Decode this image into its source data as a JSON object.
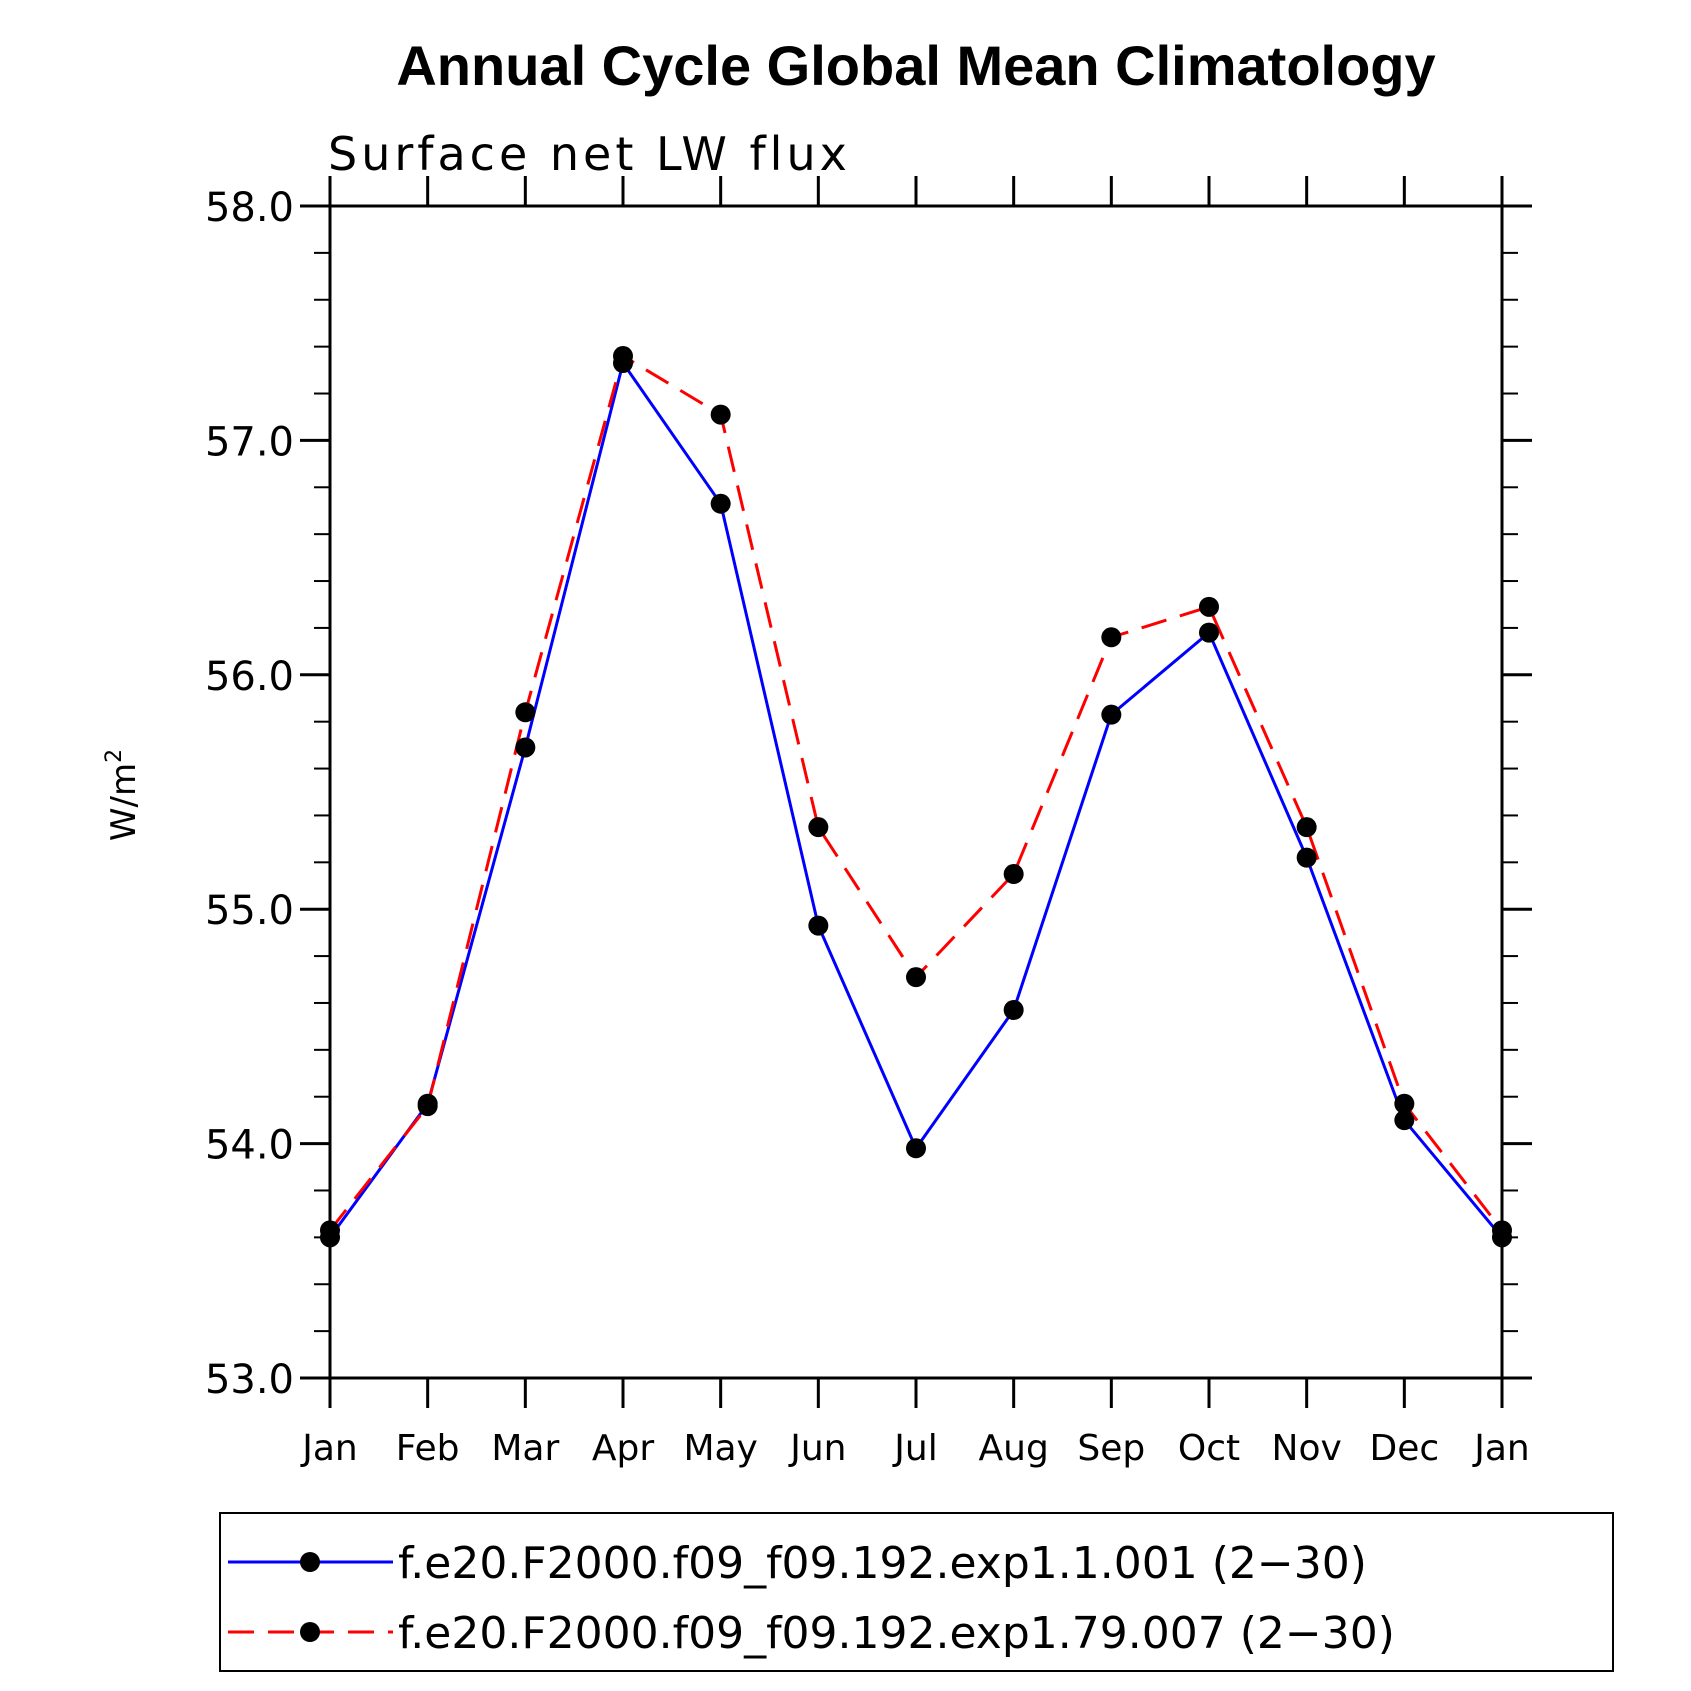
{
  "chart_data": {
    "type": "line",
    "title": "Annual Cycle Global Mean Climatology",
    "subtitle": "Surface net LW flux",
    "ylabel_main": "W/m",
    "ylabel_sup": "2",
    "xlabel": "",
    "categories": [
      "Jan",
      "Feb",
      "Mar",
      "Apr",
      "May",
      "Jun",
      "Jul",
      "Aug",
      "Sep",
      "Oct",
      "Nov",
      "Dec",
      "Jan"
    ],
    "ylim": [
      53.0,
      58.0
    ],
    "yticks": [
      53.0,
      54.0,
      55.0,
      56.0,
      57.0,
      58.0
    ],
    "ytick_labels": [
      "53.0",
      "54.0",
      "55.0",
      "56.0",
      "57.0",
      "58.0"
    ],
    "minor_tick_step": 0.2,
    "grid": false,
    "legend_position": "bottom",
    "series": [
      {
        "name": "f.e20.F2000.f09_f09.192.exp1.1.001 (2−30)",
        "color": "#0000ff",
        "style": "solid",
        "marker": "circle",
        "values": [
          53.6,
          54.17,
          55.69,
          57.33,
          56.73,
          54.93,
          53.98,
          54.57,
          55.83,
          56.18,
          55.22,
          54.1,
          53.6
        ]
      },
      {
        "name": "f.e20.F2000.f09_f09.192.exp1.79.007 (2−30)",
        "color": "#ff0000",
        "style": "dashed",
        "marker": "circle",
        "values": [
          53.63,
          54.16,
          55.84,
          57.36,
          57.11,
          55.35,
          54.71,
          55.15,
          56.16,
          56.29,
          55.35,
          54.17,
          53.63
        ]
      }
    ]
  }
}
